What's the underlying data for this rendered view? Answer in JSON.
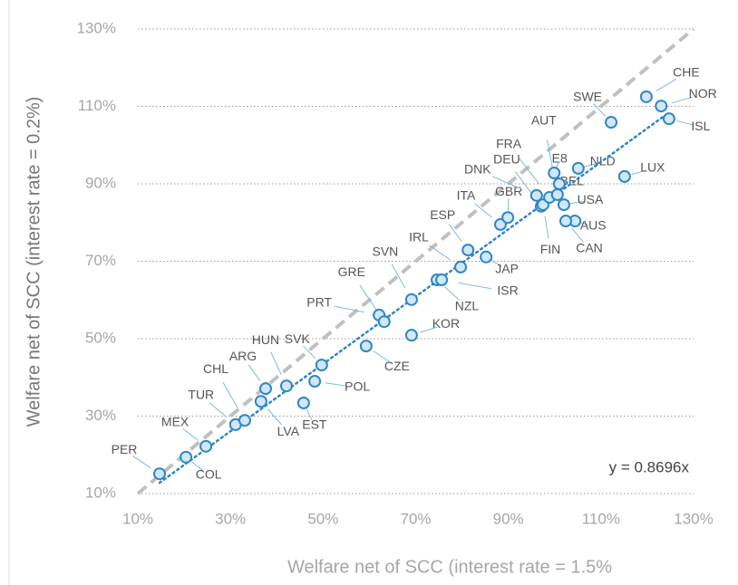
{
  "chart_data": {
    "type": "scatter",
    "xlabel": "Welfare net of SCC (interest rate = 1.5%",
    "ylabel": "Welfare net of SCC (interest rate = 0.2%)",
    "labels": [
      "PER",
      "COL",
      "MEX",
      "TUR",
      "CHL",
      "LVA",
      "ARG",
      "HUN",
      "SVK",
      "EST",
      "POL",
      "CZE",
      "PRT",
      "GRE",
      "SVN",
      "KOR",
      "IRL",
      "NZL",
      "ISR",
      "JAP",
      "ESP",
      "ITA",
      "GBR",
      "DNK",
      "DEU",
      "FIN",
      "FRA",
      "E8",
      "NLD",
      "BEL",
      "USA",
      "AUS",
      "CAN",
      "AUT",
      "SWE",
      "LUX",
      "CHE",
      "NOR",
      "ISL"
    ],
    "x": [
      14.7,
      20.4,
      24.7,
      31.1,
      33.1,
      36.6,
      37.6,
      42.1,
      49.7,
      45.8,
      48.2,
      59.3,
      62.1,
      63.2,
      69.1,
      69.1,
      79.7,
      74.6,
      75.6,
      85.2,
      81.3,
      88.3,
      89.9,
      96.1,
      97.1,
      97.5,
      98.9,
      99.9,
      105.1,
      101.0,
      102.0,
      104.4,
      102.4,
      100.6,
      112.2,
      115.1,
      119.8,
      123.0,
      124.7
    ],
    "values": [
      15.1,
      19.4,
      22.2,
      27.8,
      28.9,
      33.8,
      37.1,
      37.8,
      43.2,
      33.4,
      39.0,
      48.1,
      56.1,
      54.4,
      60.1,
      50.9,
      68.5,
      65.2,
      65.2,
      71.1,
      72.9,
      79.5,
      81.3,
      87.0,
      84.2,
      84.6,
      86.5,
      92.8,
      94.0,
      90.0,
      84.6,
      80.4,
      80.4,
      87.2,
      105.9,
      91.9,
      112.5,
      110.1,
      106.8
    ],
    "marker_color": "#2e86c8",
    "marker_fill": "#d2e7f7",
    "trendline": {
      "slope": 0.8696,
      "label": "y = 0.8696x",
      "color": "#2e86c8"
    },
    "reference_line": {
      "color": "#c0c0c0"
    },
    "xlim": [
      10,
      130
    ],
    "ylim": [
      10,
      130
    ],
    "xticks": [
      {
        "value": 10,
        "label": "10%"
      },
      {
        "value": 30,
        "label": "30%"
      },
      {
        "value": 50,
        "label": "50%"
      },
      {
        "value": 70,
        "label": "70%"
      },
      {
        "value": 90,
        "label": "90%"
      },
      {
        "value": 110,
        "label": "110%"
      },
      {
        "value": 130,
        "label": "130%"
      }
    ],
    "yticks": [
      {
        "value": 10,
        "label": "10%"
      },
      {
        "value": 30,
        "label": "30%"
      },
      {
        "value": 50,
        "label": "50%"
      },
      {
        "value": 70,
        "label": "70%"
      },
      {
        "value": 90,
        "label": "90%"
      },
      {
        "value": 110,
        "label": "110%"
      },
      {
        "value": 130,
        "label": "130%"
      }
    ],
    "grid": true
  }
}
